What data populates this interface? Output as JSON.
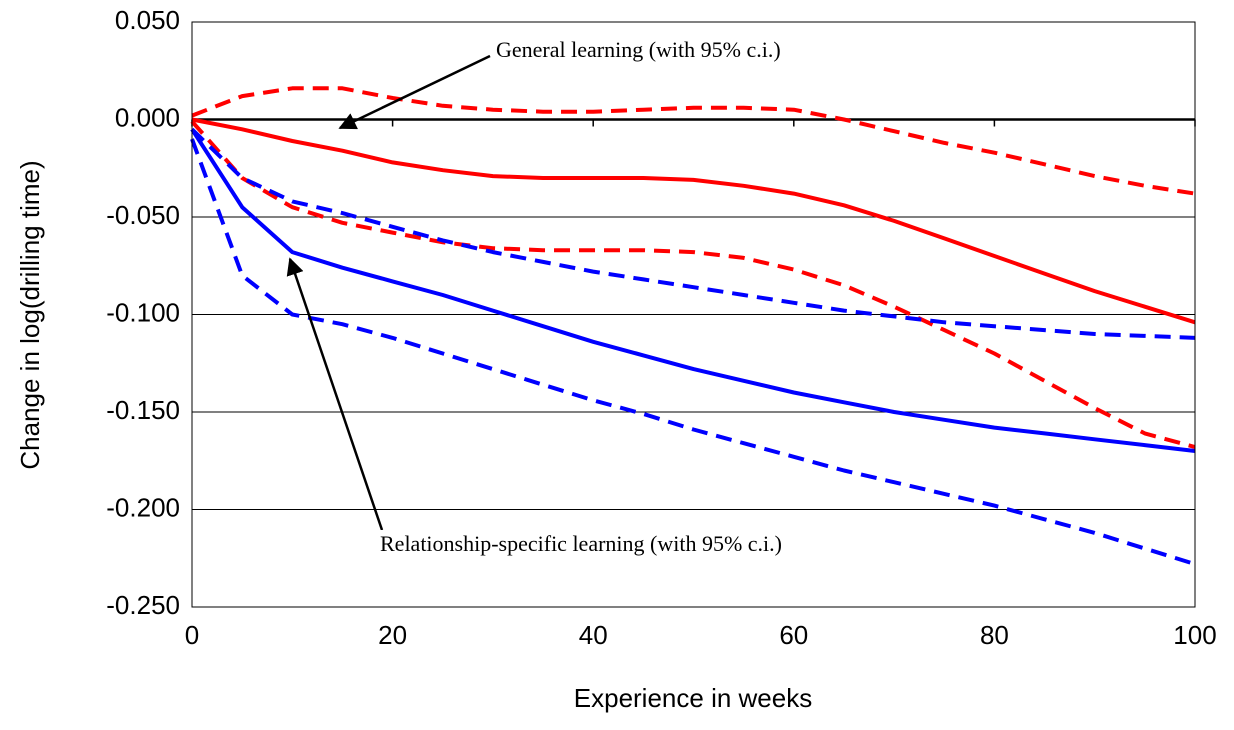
{
  "chart_data": {
    "type": "line",
    "y_label": "Change in log(drilling time)",
    "x_label": "Experience in weeks",
    "annotations": [
      "General learning (with 95% c.i.)",
      "Relationship-specific learning (with 95% c.i.)"
    ],
    "x": [
      0,
      5,
      10,
      15,
      20,
      25,
      30,
      35,
      40,
      45,
      50,
      55,
      60,
      65,
      70,
      75,
      80,
      85,
      90,
      95,
      100
    ],
    "series": [
      {
        "color": "#ff0000",
        "dashed": false,
        "values": [
          0,
          -0.005,
          -0.011,
          -0.016,
          -0.022,
          -0.026,
          -0.029,
          -0.03,
          -0.03,
          -0.03,
          -0.031,
          -0.034,
          -0.038,
          -0.044,
          -0.052,
          -0.061,
          -0.07,
          -0.079,
          -0.088,
          -0.096,
          -0.104
        ]
      },
      {
        "color": "#ff0000",
        "dashed": true,
        "values": [
          0.002,
          0.012,
          0.016,
          0.016,
          0.011,
          0.007,
          0.005,
          0.004,
          0.004,
          0.005,
          0.006,
          0.006,
          0.005,
          0.0,
          -0.006,
          -0.012,
          -0.017,
          -0.023,
          -0.029,
          -0.034,
          -0.038
        ]
      },
      {
        "color": "#ff0000",
        "dashed": true,
        "values": [
          -0.001,
          -0.03,
          -0.045,
          -0.053,
          -0.058,
          -0.063,
          -0.066,
          -0.067,
          -0.067,
          -0.067,
          -0.068,
          -0.071,
          -0.077,
          -0.085,
          -0.096,
          -0.108,
          -0.12,
          -0.134,
          -0.148,
          -0.161,
          -0.168
        ]
      },
      {
        "color": "#0000ff",
        "dashed": false,
        "values": [
          -0.005,
          -0.045,
          -0.068,
          -0.076,
          -0.083,
          -0.09,
          -0.098,
          -0.106,
          -0.114,
          -0.121,
          -0.128,
          -0.134,
          -0.14,
          -0.145,
          -0.15,
          -0.154,
          -0.158,
          -0.161,
          -0.164,
          -0.167,
          -0.17
        ]
      },
      {
        "color": "#0000ff",
        "dashed": true,
        "values": [
          -0.005,
          -0.03,
          -0.042,
          -0.048,
          -0.055,
          -0.062,
          -0.068,
          -0.073,
          -0.078,
          -0.082,
          -0.086,
          -0.09,
          -0.094,
          -0.098,
          -0.101,
          -0.104,
          -0.106,
          -0.108,
          -0.11,
          -0.111,
          -0.112
        ]
      },
      {
        "color": "#0000ff",
        "dashed": true,
        "values": [
          -0.01,
          -0.08,
          -0.1,
          -0.105,
          -0.112,
          -0.12,
          -0.128,
          -0.136,
          -0.144,
          -0.151,
          -0.159,
          -0.166,
          -0.173,
          -0.18,
          -0.186,
          -0.192,
          -0.198,
          -0.205,
          -0.212,
          -0.22,
          -0.228
        ]
      }
    ],
    "xlim": [
      0,
      100
    ],
    "xticks": [
      0,
      20,
      40,
      60,
      80,
      100
    ],
    "ylim": [
      -0.25,
      0.05
    ],
    "yticks": [
      {
        "value": 0.05,
        "label": "0.050"
      },
      {
        "value": 0,
        "label": "0.000"
      },
      {
        "value": -0.05,
        "label": "-0.050"
      },
      {
        "value": -0.1,
        "label": "-0.100"
      },
      {
        "value": -0.15,
        "label": "-0.150"
      },
      {
        "value": -0.2,
        "label": "-0.200"
      },
      {
        "value": -0.25,
        "label": "-0.250"
      }
    ],
    "grid": true
  }
}
